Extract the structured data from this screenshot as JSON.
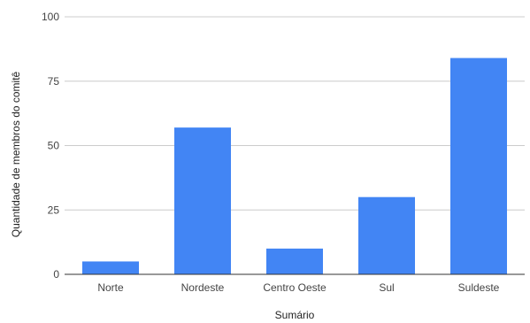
{
  "chart_data": {
    "type": "bar",
    "categories": [
      "Norte",
      "Nordeste",
      "Centro Oeste",
      "Sul",
      "Suldeste"
    ],
    "values": [
      5,
      57,
      10,
      30,
      84
    ],
    "xlabel": "Sumário",
    "ylabel": "Quantidade de membros do comitê",
    "ylim": [
      0,
      100
    ],
    "yticks": [
      0,
      25,
      50,
      75,
      100
    ],
    "grid": true,
    "legend": "none",
    "colors": {
      "bar": "#4285f4",
      "grid": "#cccccc",
      "axis": "#333333"
    }
  }
}
